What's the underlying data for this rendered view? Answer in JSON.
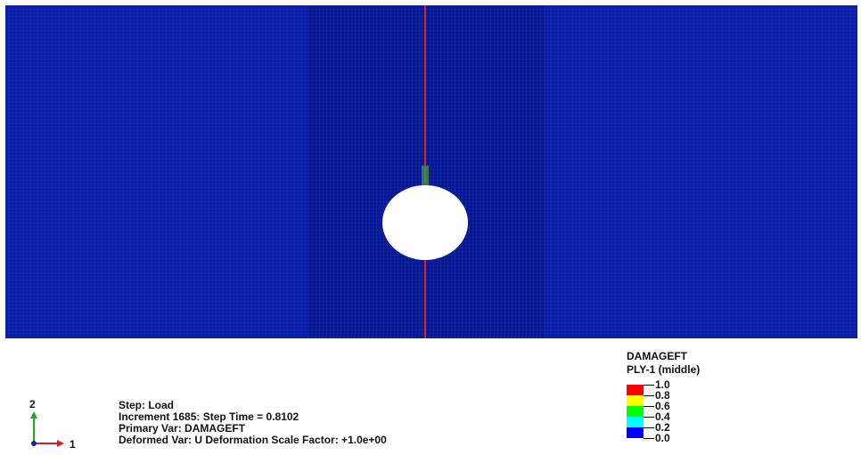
{
  "viewport": {
    "mesh_color": "#0a1fa8",
    "mesh_zone_color": "#081a90",
    "grid_line_color": "#1a2db8",
    "crack_color": "#e0201a",
    "hole_color": "#ffffff",
    "damage_marker_color": "#3b8f4a"
  },
  "legend": {
    "title": "DAMAGEFT",
    "subtitle": "PLY-1 (middle)",
    "entries": [
      {
        "label": "1.0",
        "color": "#ff0000"
      },
      {
        "label": "0.8",
        "color": "#ffff00"
      },
      {
        "label": "0.6",
        "color": "#00ff00"
      },
      {
        "label": "0.4",
        "color": "#00ffff"
      },
      {
        "label": "0.2",
        "color": "#0000ff"
      },
      {
        "label": "0.0",
        "color": null
      }
    ]
  },
  "info": {
    "step": "Step: Load",
    "increment": "Increment   1685: Step Time =    0.8102",
    "primary_var": "Primary Var: DAMAGEFT",
    "deformed_var": "Deformed Var: U   Deformation Scale Factor: +1.0e+00"
  },
  "triad": {
    "axis_y_label": "2",
    "axis_x_label": "1",
    "axis_y_color": "#1fa81f",
    "axis_x_color": "#d02020",
    "origin_color": "#1a1aa8"
  }
}
